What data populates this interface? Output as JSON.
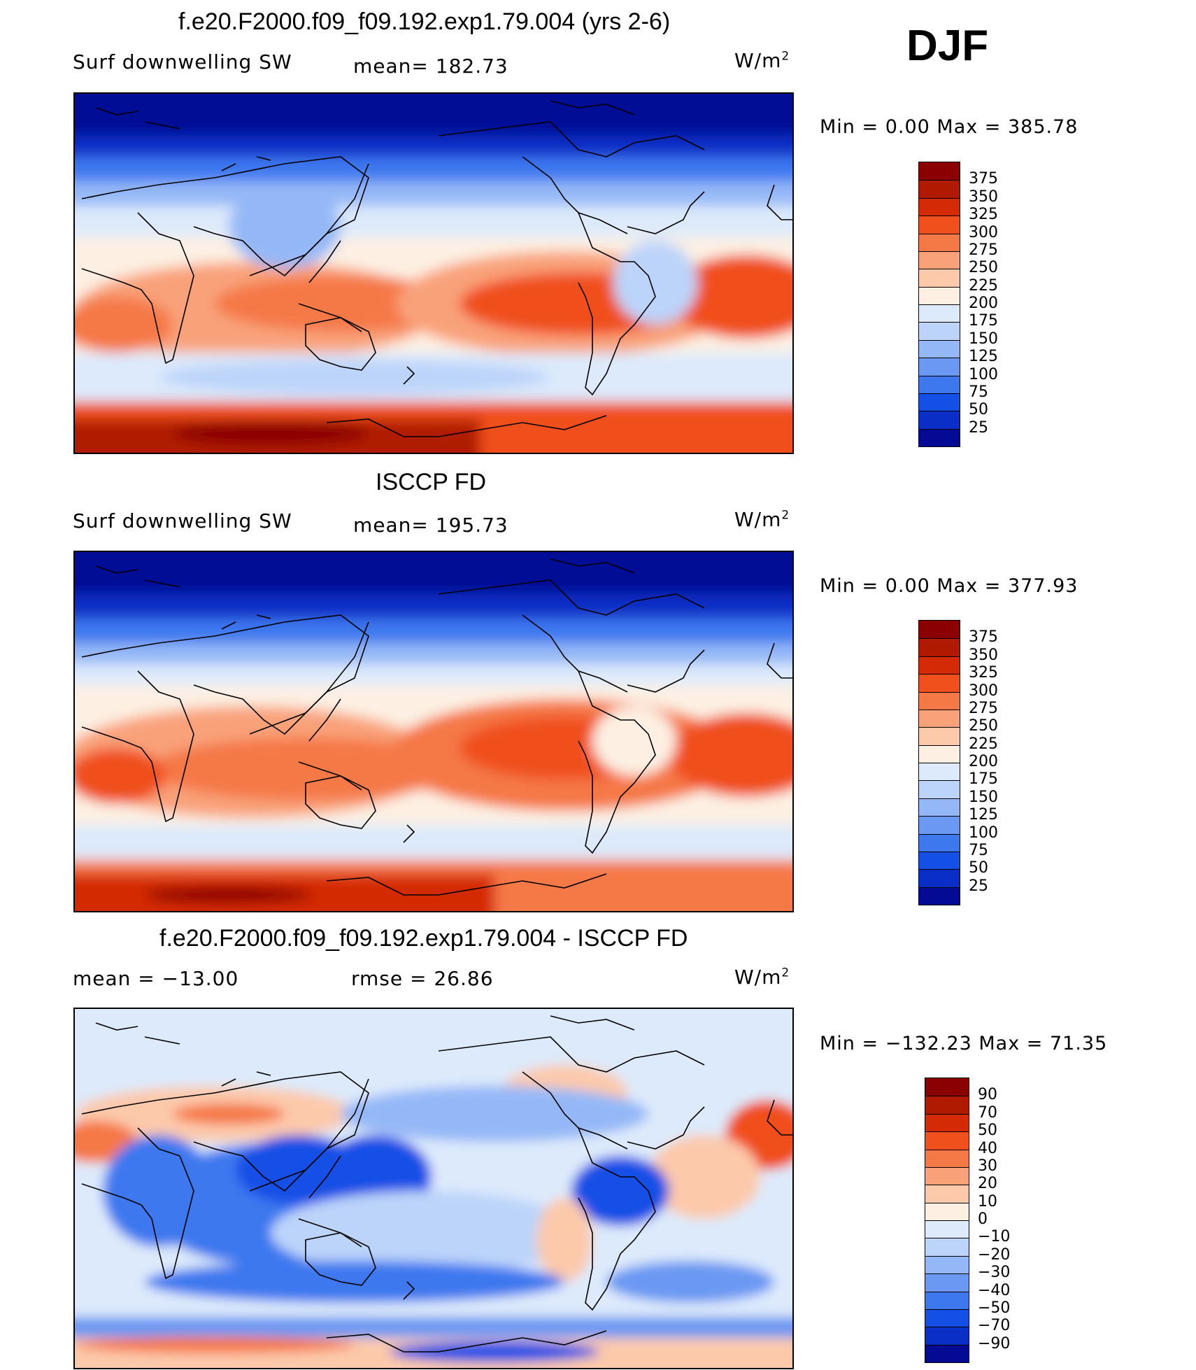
{
  "corner_label": "DJF",
  "panels": [
    {
      "title": "f.e20.F2000.f09_f09.192.exp1.79.004 (yrs 2-6)",
      "left_label": "Surf downwelling SW",
      "stat_label": "mean=  182.73",
      "units_base": "W/m",
      "units_exp": "2",
      "min_max": "Min  =     0.00  Max  =  385.78",
      "colorbar_ticks": [
        "375",
        "350",
        "325",
        "300",
        "275",
        "250",
        "225",
        "200",
        "175",
        "150",
        "125",
        "100",
        "75",
        "50",
        "25"
      ],
      "colorbar_colors": [
        "#8b0000",
        "#b01a00",
        "#d42a05",
        "#f0501c",
        "#f57847",
        "#f9a27a",
        "#fcc9ab",
        "#fdf0e3",
        "#ddeafb",
        "#bcd4fa",
        "#94b8f7",
        "#6a98f2",
        "#3d78ef",
        "#1450e6",
        "#0a2fc6",
        "#050a94"
      ]
    },
    {
      "title": "ISCCP FD",
      "left_label": "Surf downwelling SW",
      "stat_label": "mean=  195.73",
      "units_base": "W/m",
      "units_exp": "2",
      "min_max": "Min  =     0.00  Max  =  377.93",
      "colorbar_ticks": [
        "375",
        "350",
        "325",
        "300",
        "275",
        "250",
        "225",
        "200",
        "175",
        "150",
        "125",
        "100",
        "75",
        "50",
        "25"
      ],
      "colorbar_colors": [
        "#8b0000",
        "#b01a00",
        "#d42a05",
        "#f0501c",
        "#f57847",
        "#f9a27a",
        "#fcc9ab",
        "#fdf0e3",
        "#ddeafb",
        "#bcd4fa",
        "#94b8f7",
        "#6a98f2",
        "#3d78ef",
        "#1450e6",
        "#0a2fc6",
        "#050a94"
      ]
    },
    {
      "title": "f.e20.F2000.f09_f09.192.exp1.79.004 - ISCCP FD",
      "left_label": "mean  =  −13.00",
      "stat_label": "rmse  =    26.86",
      "units_base": "W/m",
      "units_exp": "2",
      "min_max": "Min  = −132.23  Max  =    71.35",
      "colorbar_ticks": [
        "90",
        "70",
        "50",
        "40",
        "30",
        "20",
        "10",
        "0",
        "−10",
        "−20",
        "−30",
        "−40",
        "−50",
        "−70",
        "−90"
      ],
      "colorbar_colors": [
        "#8b0000",
        "#b01a00",
        "#d42a05",
        "#f0501c",
        "#f57847",
        "#f9a27a",
        "#fcc9ab",
        "#fdf0e3",
        "#ddeafb",
        "#bcd4fa",
        "#94b8f7",
        "#6a98f2",
        "#3d78ef",
        "#1450e6",
        "#0a2fc6",
        "#050a94"
      ]
    }
  ]
}
